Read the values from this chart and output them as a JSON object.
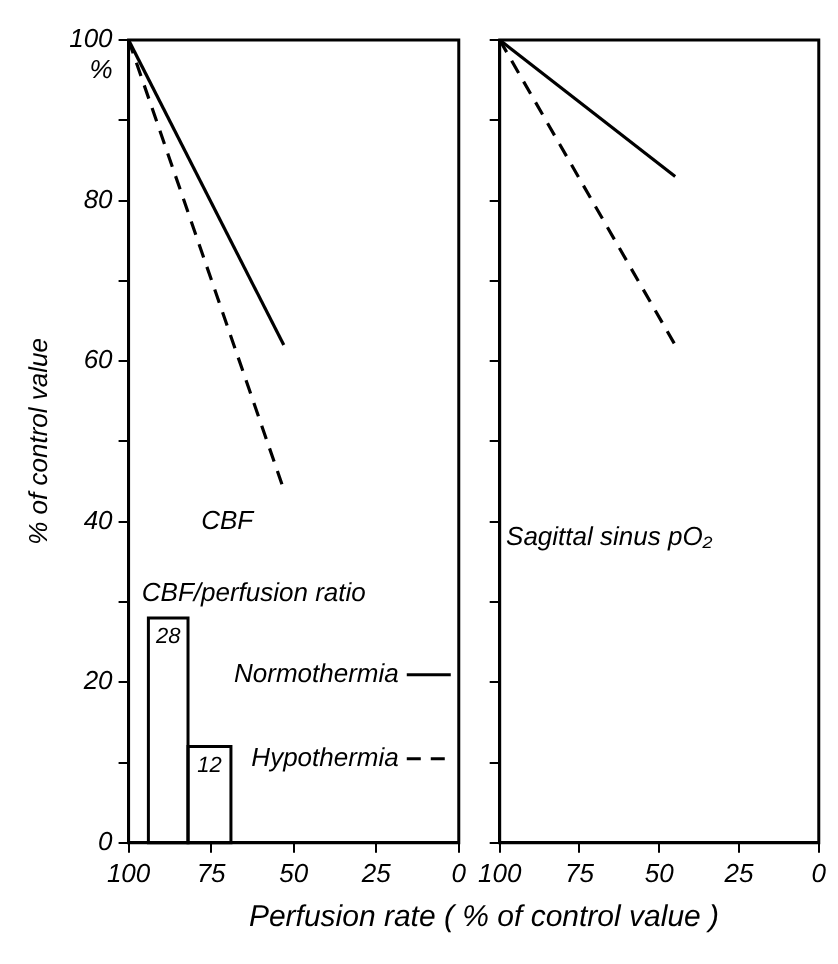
{
  "chart_data": [
    {
      "type": "line",
      "xlabel": "Perfusion rate ( % of control value )",
      "ylabel": "% of control value",
      "xlim": [
        100,
        0
      ],
      "xticks": [
        100,
        75,
        50,
        25,
        0
      ],
      "ylim": [
        0,
        100
      ],
      "yticks": [
        0,
        {
          "value": 10,
          "label": null
        },
        20,
        {
          "value": 30,
          "label": null
        },
        40,
        {
          "value": 50,
          "label": null
        },
        60,
        {
          "value": 70,
          "label": null
        },
        80,
        {
          "value": 90,
          "label": null
        },
        100
      ],
      "marker": "none",
      "grid": false,
      "legend": "bottom right",
      "series": [
        {
          "name": "Normothermia",
          "color": "#000000",
          "x": [
            100,
            53
          ],
          "values": [
            100,
            62
          ],
          "line_style": "solid"
        },
        {
          "name": "Hypothermia",
          "color": "#000000",
          "x": [
            100,
            53
          ],
          "values": [
            100,
            44
          ],
          "line_style": "dashed"
        },
        {
          "type": "histogram",
          "color": "#000000",
          "bins": [
            94,
            82,
            69
          ],
          "values": [
            28,
            12
          ],
          "value_labels": [
            "28",
            "12"
          ]
        }
      ],
      "annotations": [
        "CBF",
        "CBF/perfusion ratio",
        "%"
      ]
    },
    {
      "type": "line",
      "xlim": [
        100,
        0
      ],
      "xticks": [
        100,
        75,
        50,
        25,
        0
      ],
      "ylim": [
        0,
        100
      ],
      "yticks": [
        0,
        {
          "value": 10,
          "label": null
        },
        20,
        {
          "value": 30,
          "label": null
        },
        40,
        {
          "value": 50,
          "label": null
        },
        60,
        {
          "value": 70,
          "label": null
        },
        80,
        {
          "value": 90,
          "label": null
        },
        100
      ],
      "tick_labels": "x",
      "marker": "none",
      "grid": false,
      "series": [
        {
          "color": "#000000",
          "x": [
            100,
            45
          ],
          "values": [
            100,
            83
          ],
          "line_style": "solid"
        },
        {
          "color": "#000000",
          "x": [
            100,
            45
          ],
          "values": [
            100,
            62
          ],
          "line_style": "dashed"
        }
      ],
      "annotations": [
        "Sagittal sinus pO₂"
      ]
    }
  ]
}
